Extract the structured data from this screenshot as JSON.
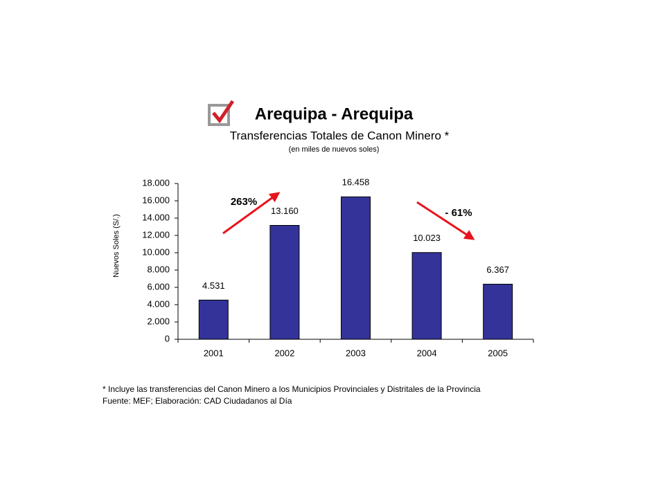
{
  "chart_data": {
    "type": "bar",
    "title": "Arequipa - Arequipa",
    "subtitle": "Transferencias Totales de Canon Minero *",
    "unit_note": "(en miles de nuevos soles)",
    "y_label": "Nuevos Soles (S/.)",
    "categories": [
      "2001",
      "2002",
      "2003",
      "2004",
      "2005"
    ],
    "values": [
      4531,
      13160,
      16458,
      10023,
      6367
    ],
    "value_labels": [
      "4.531",
      "13.160",
      "16.458",
      "10.023",
      "6.367"
    ],
    "color": "#333399",
    "ylim": [
      0,
      18000
    ],
    "yticks": [
      0,
      {
        "value": 2000,
        "label": "2.000"
      },
      {
        "value": 4000,
        "label": "4.000"
      },
      {
        "value": 6000,
        "label": "6.000"
      },
      {
        "value": 8000,
        "label": "8.000"
      },
      {
        "value": 10000,
        "label": "10.000"
      },
      {
        "value": 12000,
        "label": "12.000"
      },
      {
        "value": 14000,
        "label": "14.000"
      },
      {
        "value": 16000,
        "label": "16.000"
      },
      {
        "value": 18000,
        "label": "18.000"
      }
    ],
    "grid": false,
    "annotations": [
      "263%",
      "- 61%"
    ],
    "footnotes": [
      "* Incluye las transferencias del Canon Minero a los Municipios Provinciales y Distritales de la Provincia",
      "Fuente: MEF; Elaboración: CAD Ciudadanos al Día"
    ]
  }
}
